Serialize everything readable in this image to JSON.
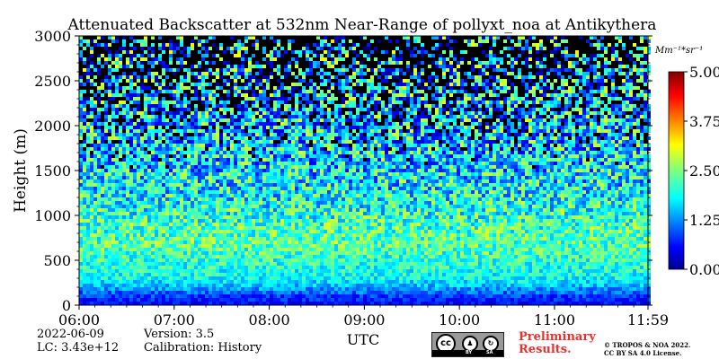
{
  "chart_data": {
    "type": "heatmap",
    "title": "Attenuated Backscatter at 532nm Near-Range of pollyxt_noa at Antikythera",
    "xlabel": "UTC",
    "ylabel": "Height (m)",
    "x_ticks": [
      "06:00",
      "07:00",
      "08:00",
      "09:00",
      "10:00",
      "11:00",
      "11:59"
    ],
    "x_range": [
      "06:00",
      "11:59"
    ],
    "y_ticks": [
      0,
      500,
      1000,
      1500,
      2000,
      2500,
      3000
    ],
    "ylim": [
      0,
      3000
    ],
    "colorbar": {
      "unit": "Mm⁻¹*sr⁻¹",
      "ticks": [
        "0.00",
        "1.25",
        "2.50",
        "3.75",
        "5.00"
      ],
      "range": [
        0,
        5
      ],
      "colormap": "jet"
    },
    "signal_profile": {
      "description_levels_height_m": [
        0,
        100,
        200,
        300,
        500,
        700,
        900,
        1200,
        1600,
        2000,
        2500,
        3000
      ],
      "typical_value": [
        0.6,
        0.9,
        1.5,
        1.9,
        2.1,
        2.3,
        2.2,
        1.9,
        1.7,
        1.6,
        1.5,
        1.4
      ]
    },
    "grid": false
  },
  "info": {
    "date": "2022-06-09",
    "lc": "LC: 3.43e+12",
    "version": "Version: 3.5",
    "calibration": "Calibration: History",
    "preliminary_line1": "Preliminary",
    "preliminary_line2": "Results.",
    "copyright_line1": "© TROPOS & NOA 2022.",
    "copyright_line2": "CC BY SA 4.0 License.",
    "license_by": "BY",
    "license_sa": "SA"
  }
}
